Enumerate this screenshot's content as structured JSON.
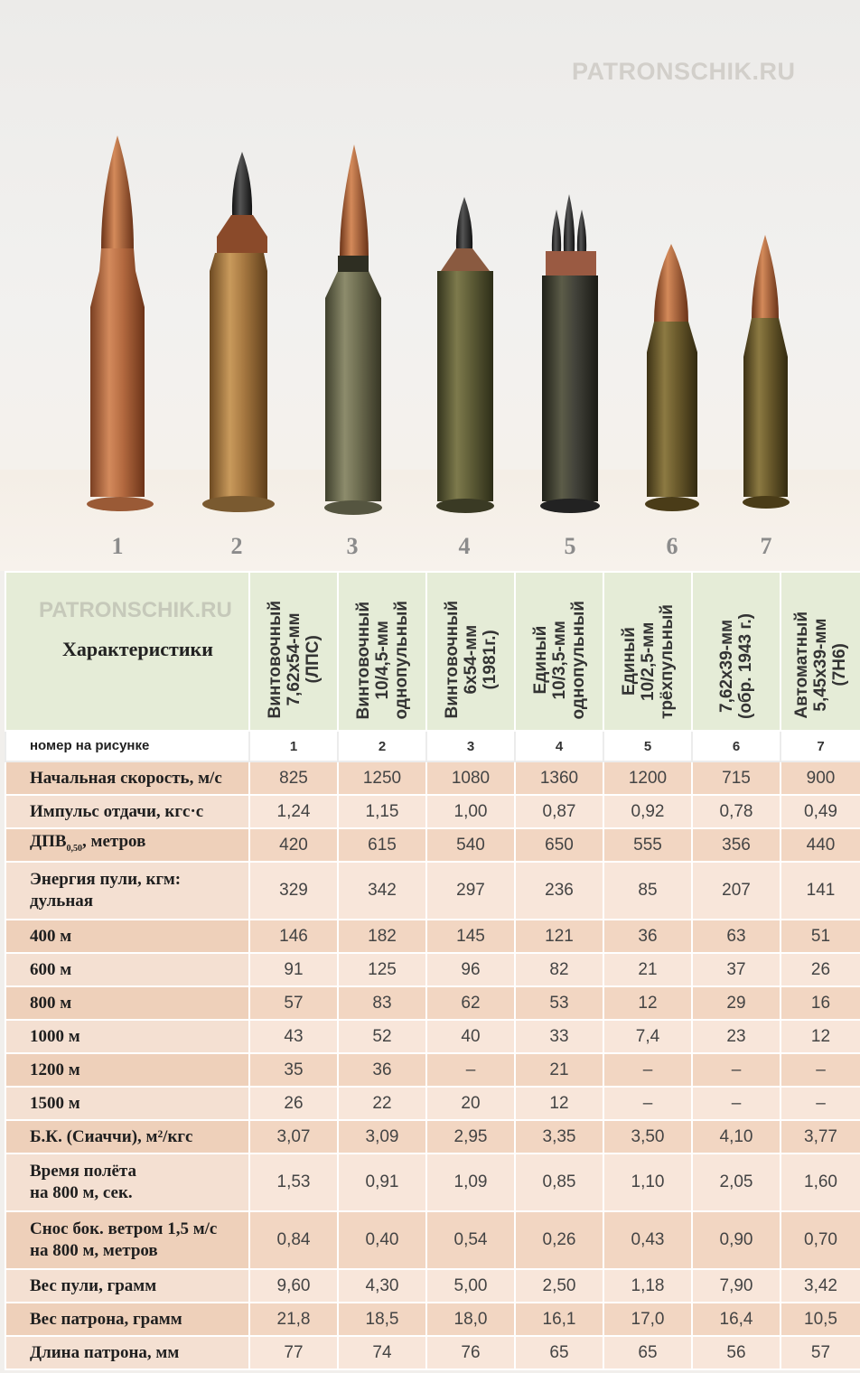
{
  "watermark": "PATRONSCHIK.RU",
  "cartridge_numbers": [
    "1",
    "2",
    "3",
    "4",
    "5",
    "6",
    "7"
  ],
  "table": {
    "characteristics_label": "Характеристики",
    "columns": [
      "Винтовочный 7,62х54-мм (ЛПС)",
      "Винтовочный 10/4,5-мм однопульный",
      "Винтовочный 6х54-мм (1981г.)",
      "Единый 10/3,5-мм однопульный",
      "Единый 10/2,5-мм трёхпульный",
      "7,62х39-мм (обр. 1943 г.)",
      "Автоматный 5,45х39-мм (7Н6)"
    ],
    "column_lines": [
      [
        "Винтовочный",
        "7,62х54-мм",
        "(ЛПС)"
      ],
      [
        "Винтовочный",
        "10/4,5-мм",
        "однопульный"
      ],
      [
        "Винтовочный",
        "6х54-мм",
        "(1981г.)"
      ],
      [
        "Единый",
        "10/3,5-мм",
        "однопульный"
      ],
      [
        "Единый",
        "10/2,5-мм",
        "трёхпульный"
      ],
      [
        "7,62х39-мм",
        "(обр. 1943 г.)"
      ],
      [
        "Автоматный",
        "5,45х39-мм",
        "(7Н6)"
      ]
    ],
    "number_row": {
      "label": "номер на рисунке",
      "values": [
        "1",
        "2",
        "3",
        "4",
        "5",
        "6",
        "7"
      ]
    },
    "rows": [
      {
        "label": "Начальная скорость, м/с",
        "values": [
          "825",
          "1250",
          "1080",
          "1360",
          "1200",
          "715",
          "900"
        ]
      },
      {
        "label": "Импульс отдачи, кгс·с",
        "values": [
          "1,24",
          "1,15",
          "1,00",
          "0,87",
          "0,92",
          "0,78",
          "0,49"
        ]
      },
      {
        "label": "ДПВ",
        "label_sub": "0,50",
        "label_tail": ", метров",
        "values": [
          "420",
          "615",
          "540",
          "650",
          "555",
          "356",
          "440"
        ]
      },
      {
        "label": "Энергия пули, кгм:",
        "label_line2": "дульная",
        "values": [
          "329",
          "342",
          "297",
          "236",
          "85",
          "207",
          "141"
        ]
      },
      {
        "label": "400 м",
        "values": [
          "146",
          "182",
          "145",
          "121",
          "36",
          "63",
          "51"
        ]
      },
      {
        "label": "600 м",
        "values": [
          "91",
          "125",
          "96",
          "82",
          "21",
          "37",
          "26"
        ]
      },
      {
        "label": "800 м",
        "values": [
          "57",
          "83",
          "62",
          "53",
          "12",
          "29",
          "16"
        ]
      },
      {
        "label": "1000 м",
        "values": [
          "43",
          "52",
          "40",
          "33",
          "7,4",
          "23",
          "12"
        ]
      },
      {
        "label": "1200 м",
        "values": [
          "35",
          "36",
          "–",
          "21",
          "–",
          "–",
          "–"
        ]
      },
      {
        "label": "1500 м",
        "values": [
          "26",
          "22",
          "20",
          "12",
          "–",
          "–",
          "–"
        ]
      },
      {
        "label": "Б.К. (Сиаччи), м²/кгс",
        "values": [
          "3,07",
          "3,09",
          "2,95",
          "3,35",
          "3,50",
          "4,10",
          "3,77"
        ]
      },
      {
        "label": "Время полёта",
        "label_line2": "на 800 м, сек.",
        "values": [
          "1,53",
          "0,91",
          "1,09",
          "0,85",
          "1,10",
          "2,05",
          "1,60"
        ]
      },
      {
        "label": "Снос бок. ветром 1,5 м/с",
        "label_line2": "на 800 м, метров",
        "values": [
          "0,84",
          "0,40",
          "0,54",
          "0,26",
          "0,43",
          "0,90",
          "0,70"
        ]
      },
      {
        "label": "Вес пули, грамм",
        "values": [
          "9,60",
          "4,30",
          "5,00",
          "2,50",
          "1,18",
          "7,90",
          "3,42"
        ]
      },
      {
        "label": "Вес патрона, грамм",
        "values": [
          "21,8",
          "18,5",
          "18,0",
          "16,1",
          "17,0",
          "16,4",
          "10,5"
        ]
      },
      {
        "label": "Длина патрона, мм",
        "values": [
          "77",
          "74",
          "76",
          "65",
          "65",
          "56",
          "57"
        ]
      }
    ]
  }
}
